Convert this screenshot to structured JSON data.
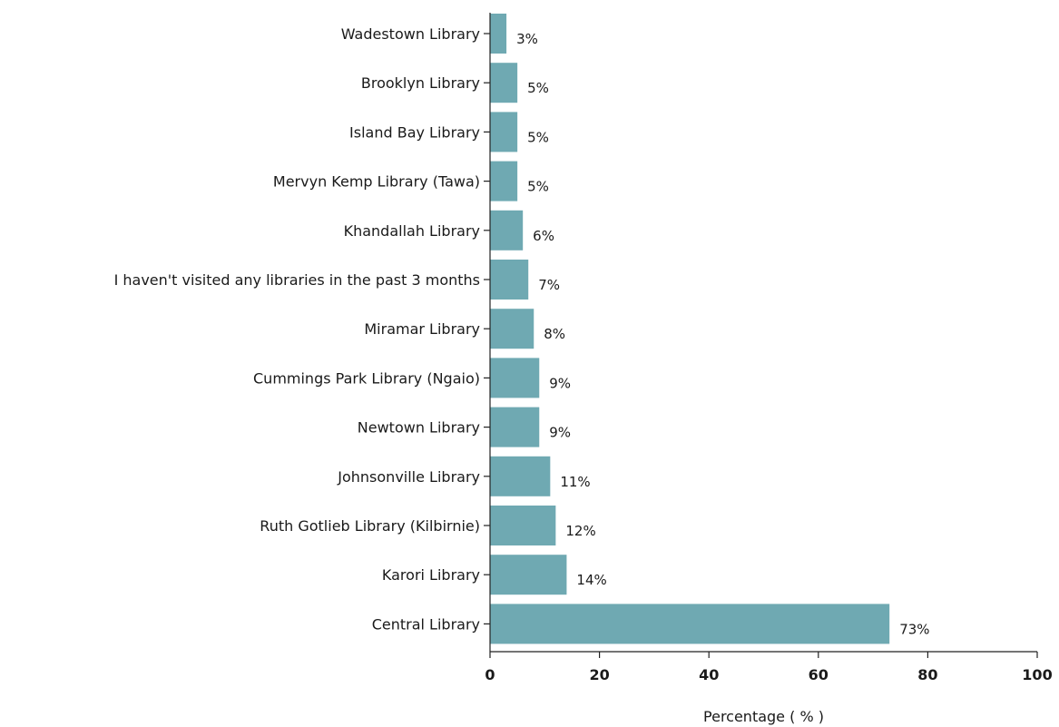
{
  "chart_data": {
    "type": "bar",
    "orientation": "horizontal",
    "categories": [
      "Wadestown Library",
      "Brooklyn Library",
      "Island Bay Library",
      "Mervyn Kemp Library (Tawa)",
      "Khandallah Library",
      "I haven't visited any libraries in the past 3 months",
      "Miramar Library",
      "Cummings Park Library (Ngaio)",
      "Newtown Library",
      "Johnsonville Library",
      "Ruth Gotlieb Library (Kilbirnie)",
      "Karori Library",
      "Central Library"
    ],
    "values": [
      3,
      5,
      5,
      5,
      6,
      7,
      8,
      9,
      9,
      11,
      12,
      14,
      73
    ],
    "value_labels": [
      "3%",
      "5%",
      "5%",
      "5%",
      "6%",
      "7%",
      "8%",
      "9%",
      "9%",
      "11%",
      "12%",
      "14%",
      "73%"
    ],
    "xlabel": "Percentage ( % )",
    "ylabel": "",
    "xlim": [
      0,
      100
    ],
    "xticks": [
      0,
      20,
      40,
      60,
      80,
      100
    ],
    "xtick_labels": [
      "0",
      "20",
      "40",
      "60",
      "80",
      "100"
    ],
    "bar_color": "#6fa9b2",
    "grid": false,
    "legend": "none"
  }
}
